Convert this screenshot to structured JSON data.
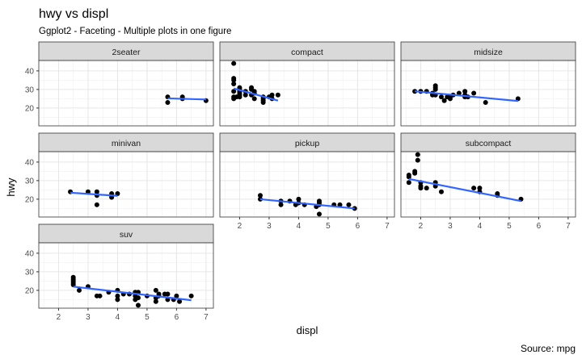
{
  "chart_data": {
    "type": "scatter",
    "title": "hwy vs displ",
    "subtitle": "Ggplot2 - Faceting - Multiple plots in one figure",
    "caption": "Source: mpg",
    "xlabel": "displ",
    "ylabel": "hwy",
    "xlim": [
      1.33,
      7.25
    ],
    "ylim": [
      10.4,
      45.6
    ],
    "x_ticks": [
      2,
      3,
      4,
      5,
      6,
      7
    ],
    "y_ticks": [
      20,
      30,
      40
    ],
    "grid": true,
    "colors": {
      "points": "#000000",
      "fit_line": "#3366ff",
      "strip_bg": "#d9d9d9"
    },
    "panels": [
      {
        "name": "2seater",
        "points": [
          [
            5.7,
            26
          ],
          [
            5.7,
            23
          ],
          [
            6.2,
            26
          ],
          [
            6.2,
            25
          ],
          [
            7.0,
            24
          ]
        ],
        "fit": [
          [
            5.7,
            25.2
          ],
          [
            7.0,
            24.6
          ]
        ]
      },
      {
        "name": "compact",
        "points": [
          [
            1.8,
            29
          ],
          [
            1.8,
            26
          ],
          [
            1.8,
            25
          ],
          [
            1.8,
            44
          ],
          [
            1.8,
            36
          ],
          [
            1.8,
            35
          ],
          [
            1.8,
            33
          ],
          [
            2.0,
            31
          ],
          [
            2.0,
            30
          ],
          [
            2.0,
            28
          ],
          [
            2.0,
            26
          ],
          [
            2.0,
            29
          ],
          [
            2.2,
            27
          ],
          [
            2.2,
            29
          ],
          [
            2.4,
            31
          ],
          [
            2.4,
            30
          ],
          [
            2.4,
            27
          ],
          [
            2.5,
            29
          ],
          [
            2.5,
            25
          ],
          [
            2.8,
            26
          ],
          [
            2.8,
            25
          ],
          [
            2.8,
            24
          ],
          [
            2.8,
            23
          ],
          [
            3.0,
            26
          ],
          [
            3.1,
            27
          ],
          [
            3.1,
            25
          ],
          [
            3.3,
            27
          ],
          [
            2.5,
            28
          ],
          [
            2.0,
            27
          ],
          [
            1.9,
            26
          ]
        ],
        "fit": [
          [
            1.8,
            30.5
          ],
          [
            3.3,
            24
          ]
        ]
      },
      {
        "name": "midsize",
        "points": [
          [
            1.8,
            29
          ],
          [
            2.0,
            29
          ],
          [
            2.2,
            29
          ],
          [
            2.4,
            28
          ],
          [
            2.4,
            27
          ],
          [
            2.5,
            32
          ],
          [
            2.5,
            31
          ],
          [
            2.5,
            30
          ],
          [
            2.5,
            27
          ],
          [
            2.7,
            26
          ],
          [
            2.8,
            24
          ],
          [
            2.9,
            26
          ],
          [
            3.0,
            26
          ],
          [
            3.1,
            27
          ],
          [
            3.3,
            28
          ],
          [
            3.5,
            29
          ],
          [
            3.5,
            27
          ],
          [
            3.6,
            26
          ],
          [
            3.8,
            28
          ],
          [
            4.2,
            23
          ],
          [
            5.3,
            25
          ],
          [
            3.5,
            26
          ],
          [
            3.0,
            25
          ]
        ],
        "fit": [
          [
            1.8,
            29
          ],
          [
            5.3,
            23.8
          ]
        ]
      },
      {
        "name": "minivan",
        "points": [
          [
            2.4,
            24
          ],
          [
            3.0,
            24
          ],
          [
            3.3,
            24
          ],
          [
            3.3,
            22
          ],
          [
            3.3,
            17
          ],
          [
            3.8,
            22
          ],
          [
            3.8,
            21
          ],
          [
            3.8,
            23
          ],
          [
            4.0,
            23
          ]
        ],
        "fit": [
          [
            2.4,
            23.5
          ],
          [
            4.0,
            21.8
          ]
        ]
      },
      {
        "name": "pickup",
        "points": [
          [
            2.7,
            20
          ],
          [
            2.7,
            22
          ],
          [
            3.4,
            17
          ],
          [
            3.4,
            19
          ],
          [
            3.7,
            19
          ],
          [
            3.9,
            17
          ],
          [
            4.0,
            20
          ],
          [
            4.0,
            18
          ],
          [
            4.2,
            17
          ],
          [
            4.7,
            19
          ],
          [
            4.7,
            17
          ],
          [
            4.7,
            12
          ],
          [
            4.6,
            16
          ],
          [
            5.2,
            17
          ],
          [
            5.4,
            17
          ],
          [
            5.7,
            17
          ],
          [
            5.9,
            15
          ],
          [
            4.7,
            18
          ]
        ],
        "fit": [
          [
            2.7,
            20
          ],
          [
            5.9,
            15
          ]
        ]
      },
      {
        "name": "subcompact",
        "points": [
          [
            1.6,
            33
          ],
          [
            1.6,
            32
          ],
          [
            1.6,
            29
          ],
          [
            1.8,
            35
          ],
          [
            1.8,
            34
          ],
          [
            1.9,
            44
          ],
          [
            1.9,
            41
          ],
          [
            2.0,
            29
          ],
          [
            2.0,
            27
          ],
          [
            2.0,
            26
          ],
          [
            2.2,
            26
          ],
          [
            2.5,
            27
          ],
          [
            2.5,
            29
          ],
          [
            2.7,
            24
          ],
          [
            3.8,
            26
          ],
          [
            4.0,
            26
          ],
          [
            4.0,
            24
          ],
          [
            4.6,
            23
          ],
          [
            4.6,
            22
          ],
          [
            5.4,
            20
          ]
        ],
        "fit": [
          [
            1.6,
            30.9
          ],
          [
            5.4,
            19
          ]
        ]
      },
      {
        "name": "suv",
        "points": [
          [
            2.5,
            27
          ],
          [
            2.5,
            26
          ],
          [
            2.5,
            25
          ],
          [
            2.5,
            24
          ],
          [
            2.5,
            23
          ],
          [
            2.7,
            20
          ],
          [
            3.0,
            22
          ],
          [
            3.3,
            17
          ],
          [
            3.4,
            17
          ],
          [
            3.7,
            19
          ],
          [
            4.0,
            20
          ],
          [
            4.0,
            17
          ],
          [
            4.0,
            15
          ],
          [
            4.2,
            18
          ],
          [
            4.4,
            18
          ],
          [
            4.6,
            19
          ],
          [
            4.6,
            17
          ],
          [
            4.6,
            15
          ],
          [
            4.7,
            19
          ],
          [
            4.7,
            16
          ],
          [
            4.7,
            12
          ],
          [
            5.0,
            17
          ],
          [
            5.3,
            20
          ],
          [
            5.3,
            16
          ],
          [
            5.3,
            14
          ],
          [
            5.4,
            18
          ],
          [
            5.4,
            17
          ],
          [
            5.6,
            18
          ],
          [
            5.7,
            18
          ],
          [
            5.7,
            15
          ],
          [
            5.9,
            15
          ],
          [
            6.0,
            17
          ],
          [
            6.1,
            14
          ],
          [
            6.5,
            17
          ]
        ],
        "fit": [
          [
            2.5,
            22
          ],
          [
            6.5,
            14.7
          ]
        ]
      }
    ]
  }
}
